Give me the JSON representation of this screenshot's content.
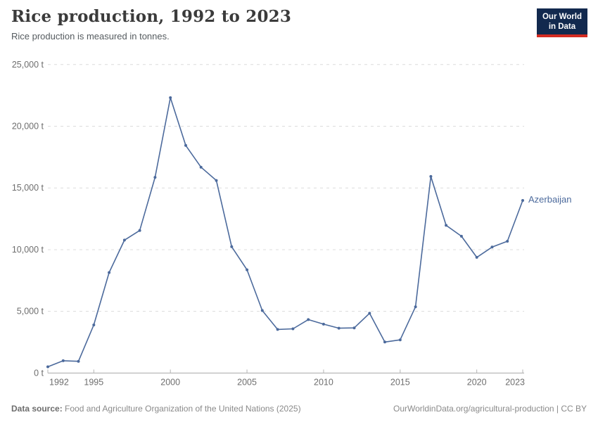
{
  "header": {
    "title": "Rice production, 1992 to 2023",
    "subtitle": "Rice production is measured in tonnes.",
    "logo": {
      "line1": "Our World",
      "line2": "in Data"
    }
  },
  "chart_data": {
    "type": "line",
    "title": "Rice production, 1992 to 2023",
    "entity": "Azerbaijan",
    "unit": "tonnes",
    "line_color": "#4c6a9c",
    "grid": "horizontal-dashed",
    "legend_position": "right-of-line",
    "x": [
      1992,
      1993,
      1994,
      1995,
      1996,
      1997,
      1998,
      1999,
      2000,
      2001,
      2002,
      2003,
      2004,
      2005,
      2006,
      2007,
      2008,
      2009,
      2010,
      2011,
      2012,
      2013,
      2014,
      2015,
      2016,
      2017,
      2018,
      2019,
      2020,
      2021,
      2022,
      2023
    ],
    "values": [
      510,
      1000,
      950,
      3898,
      8147,
      10772,
      11554,
      15861,
      22314,
      18447,
      16684,
      15606,
      10236,
      8366,
      5070,
      3534,
      3587,
      4333,
      3962,
      3635,
      3661,
      4843,
      2512,
      2690,
      5371,
      15929,
      11969,
      11089,
      9378,
      10210,
      10681,
      13990
    ],
    "ylim": [
      0,
      25000
    ],
    "ytick_step": 5000,
    "ytick_labels": [
      "0 t",
      "5,000 t",
      "10,000 t",
      "15,000 t",
      "20,000 t",
      "25,000 t"
    ],
    "xticks": [
      1992,
      1995,
      2000,
      2005,
      2010,
      2015,
      2020,
      2023
    ]
  },
  "footer": {
    "source_label": "Data source:",
    "source_text": " Food and Agriculture Organization of the United Nations (2025)",
    "attribution": "OurWorldinData.org/agricultural-production | CC BY"
  }
}
